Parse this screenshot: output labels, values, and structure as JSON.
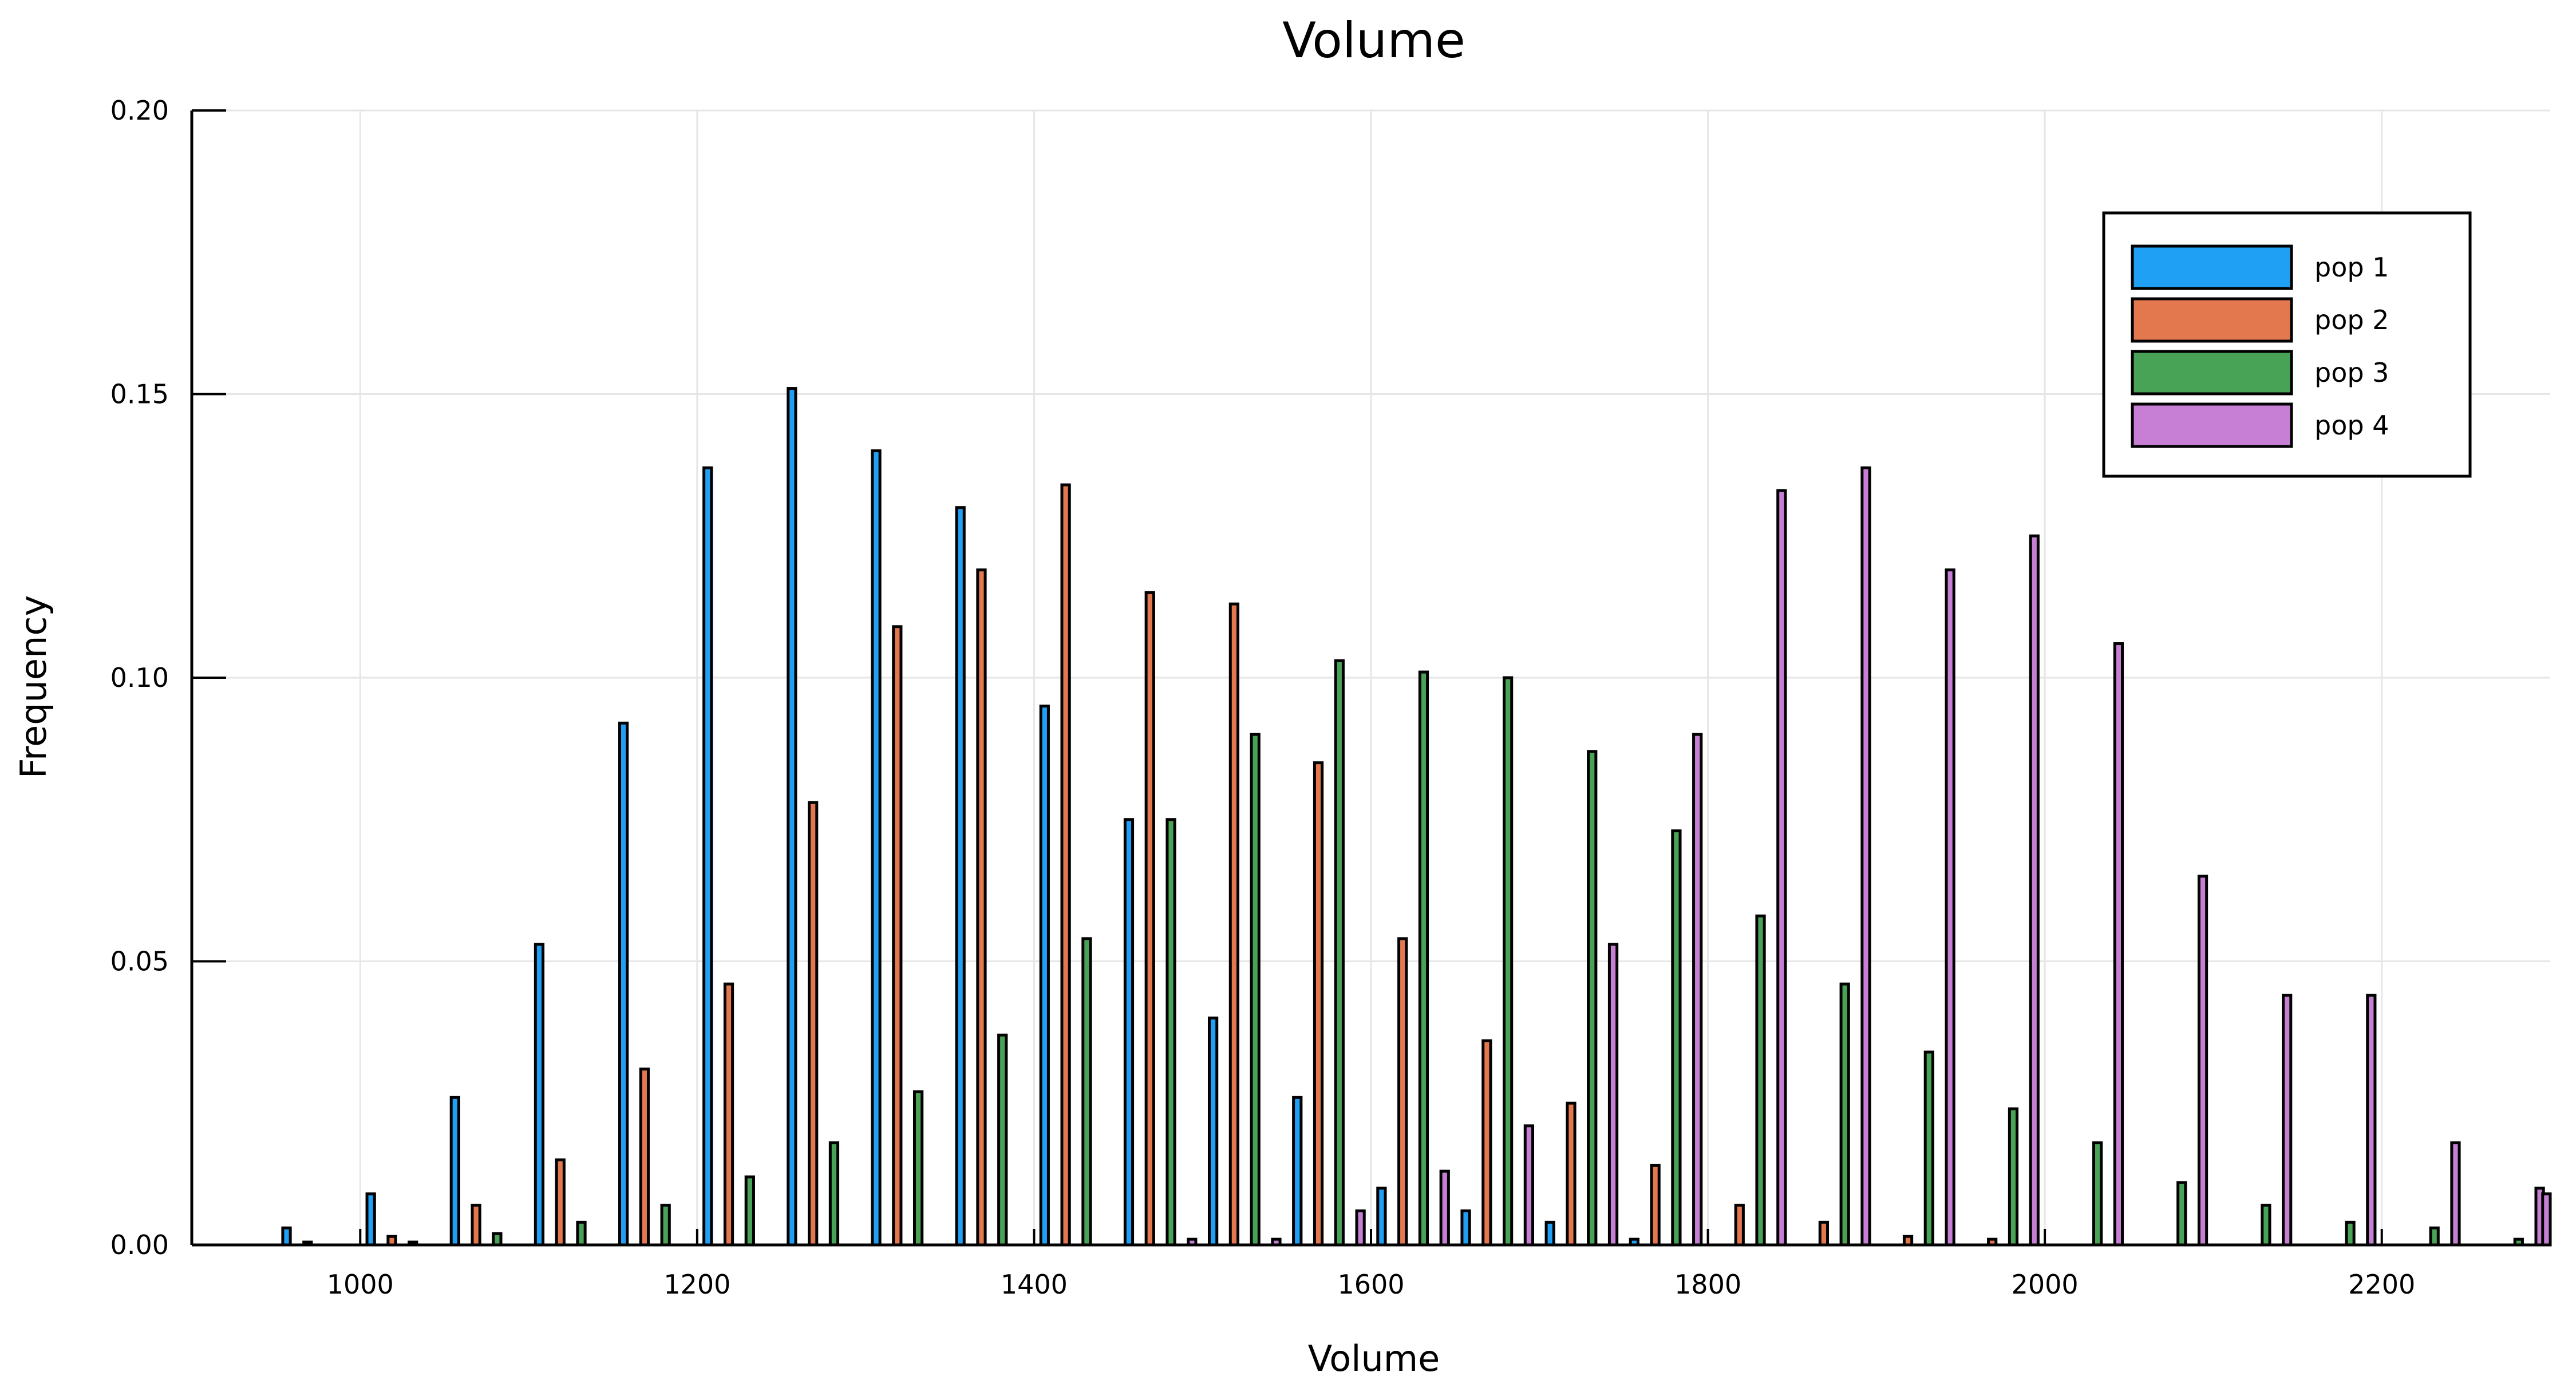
{
  "chart_data": {
    "type": "bar",
    "title": "Volume",
    "xlabel": "Volume",
    "ylabel": "Frequency",
    "xlim": [
      900,
      2300
    ],
    "ylim": [
      0,
      0.2
    ],
    "xticks": [
      1000,
      1200,
      1400,
      1600,
      1800,
      2000,
      2200
    ],
    "yticks": [
      0.0,
      0.05,
      0.1,
      0.15,
      0.2
    ],
    "xtick_labels": [
      "1000",
      "1200",
      "1400",
      "1600",
      "1800",
      "2000",
      "2200"
    ],
    "ytick_labels": [
      "0.00",
      "0.05",
      "0.10",
      "0.15",
      "0.20"
    ],
    "grid": true,
    "legend_position": "top-right",
    "bin_width": 50,
    "bin_starts": [
      900,
      950,
      1000,
      1050,
      1100,
      1150,
      1200,
      1250,
      1300,
      1350,
      1400,
      1450,
      1500,
      1550,
      1600,
      1650,
      1700,
      1750,
      1800,
      1850,
      1900,
      1950,
      2000,
      2050,
      2100,
      2150,
      2200,
      2250
    ],
    "series": [
      {
        "name": "pop 1",
        "color": "#1fa0f4",
        "values": [
          0.0,
          0.003,
          0.009,
          0.026,
          0.053,
          0.092,
          0.137,
          0.151,
          0.14,
          0.13,
          0.095,
          0.075,
          0.04,
          0.026,
          0.01,
          0.006,
          0.004,
          0.001,
          0.0,
          0.0,
          0.0,
          0.0,
          0.0,
          0.0,
          0.0,
          0.0,
          0.0,
          0.0
        ]
      },
      {
        "name": "pop 2",
        "color": "#e3784f",
        "values": [
          0.0,
          0.0005,
          0.0015,
          0.007,
          0.015,
          0.031,
          0.046,
          0.078,
          0.109,
          0.119,
          0.134,
          0.115,
          0.113,
          0.085,
          0.054,
          0.036,
          0.025,
          0.014,
          0.007,
          0.004,
          0.0015,
          0.001,
          0.0,
          0.0,
          0.0,
          0.0,
          0.0,
          0.0
        ]
      },
      {
        "name": "pop 3",
        "color": "#48a356",
        "values": [
          0.0,
          0.0,
          0.0005,
          0.002,
          0.004,
          0.007,
          0.012,
          0.018,
          0.027,
          0.037,
          0.054,
          0.075,
          0.09,
          0.103,
          0.101,
          0.1,
          0.087,
          0.073,
          0.058,
          0.046,
          0.034,
          0.024,
          0.018,
          0.011,
          0.007,
          0.004,
          0.003,
          0.001
        ]
      },
      {
        "name": "pop 4",
        "color": "#c67fd5",
        "values": [
          0.0,
          0.0,
          0.0,
          0.0,
          0.0,
          0.0,
          0.0,
          0.0,
          0.0,
          0.0,
          0.0,
          0.001,
          0.001,
          0.006,
          0.013,
          0.021,
          0.053,
          0.09,
          0.133,
          0.137,
          0.119,
          0.125,
          0.106,
          0.065,
          0.044,
          0.044,
          0.018,
          0.01
        ]
      }
    ],
    "extra_bar": {
      "series": "pop 4",
      "x": 2300,
      "value": 0.009
    }
  }
}
